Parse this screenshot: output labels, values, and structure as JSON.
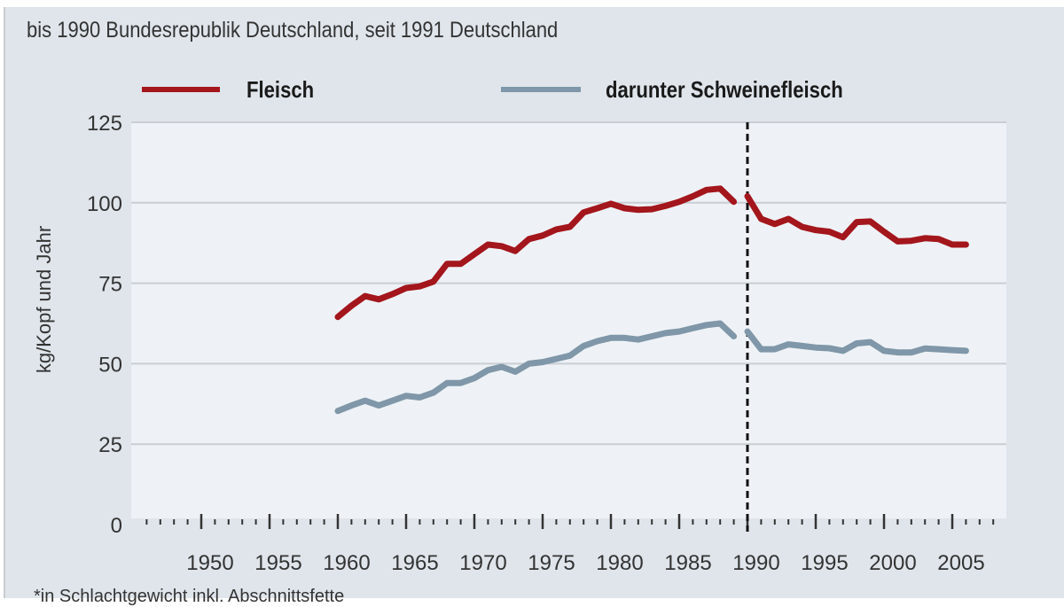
{
  "chart_data": {
    "type": "line",
    "title": "",
    "subtitle": "bis 1990 Bundesrepublik Deutschland, seit 1991 Deutschland",
    "xlabel": "",
    "ylabel": "kg/Kopf und Jahr",
    "ylim": [
      0,
      125
    ],
    "yticks": [
      "0",
      "25",
      "50",
      "75",
      "100",
      "125"
    ],
    "xlim": [
      1946,
      2008
    ],
    "xticks": [
      "1950",
      "1955",
      "1960",
      "1965",
      "1970",
      "1975",
      "1980",
      "1985",
      "1990",
      "1995",
      "2000",
      "2005"
    ],
    "grid": true,
    "legend_position": "top",
    "break_marker_year": 1990,
    "x": [
      1960,
      1961,
      1962,
      1963,
      1964,
      1965,
      1966,
      1967,
      1968,
      1969,
      1970,
      1971,
      1972,
      1973,
      1974,
      1975,
      1976,
      1977,
      1978,
      1979,
      1980,
      1981,
      1982,
      1983,
      1984,
      1985,
      1986,
      1987,
      1988,
      1989,
      1990,
      1991,
      1992,
      1993,
      1994,
      1995,
      1996,
      1997,
      1998,
      1999,
      2000,
      2001,
      2002,
      2003,
      2004,
      2005,
      2006
    ],
    "series": [
      {
        "name": "Fleisch",
        "color": "#a3161c",
        "values": [
          64.5,
          68,
          71,
          70,
          71.6,
          73.5,
          74,
          75.5,
          81,
          81,
          84,
          87,
          86.5,
          85,
          88.7,
          89.8,
          91.7,
          92.5,
          97,
          98.3,
          99.7,
          98.3,
          97.8,
          98,
          99,
          100.3,
          102,
          104,
          104.4,
          100.3,
          102,
          95,
          93.4,
          95,
          92.5,
          91.5,
          91,
          89.3,
          94,
          94.2,
          91,
          88,
          88.2,
          89,
          88.7,
          87,
          87
        ]
      },
      {
        "name": "darunter Schweinefleisch",
        "color": "#7f97a8",
        "values": [
          35.3,
          37,
          38.5,
          37,
          38.5,
          40,
          39.5,
          41,
          44,
          44,
          45.5,
          48,
          49,
          47.5,
          50,
          50.5,
          51.5,
          52.5,
          55.5,
          57,
          58,
          58,
          57.5,
          58.5,
          59.5,
          60,
          61,
          62,
          62.5,
          58.5,
          60,
          54.5,
          54.5,
          56,
          55.5,
          55,
          54.8,
          54,
          56.3,
          56.7,
          54,
          53.5,
          53.5,
          54.7,
          54.5,
          54.2,
          54
        ]
      }
    ],
    "footnote": "*in Schlachtgewicht inkl. Abschnittsfette"
  }
}
